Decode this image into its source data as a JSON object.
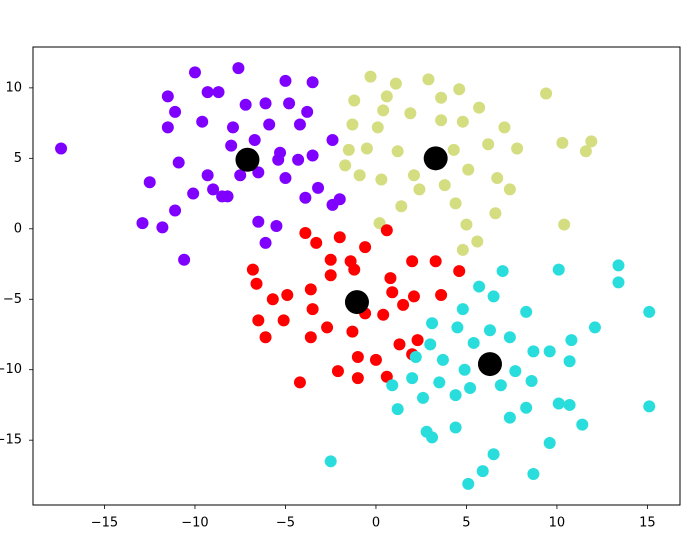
{
  "chart_data": {
    "type": "scatter",
    "xlim": [
      -18.95,
      16.8
    ],
    "ylim": [
      -19.6,
      12.9
    ],
    "xticks": [
      {
        "value": -15,
        "label": "−15"
      },
      {
        "value": -10,
        "label": "−10"
      },
      {
        "value": -5,
        "label": "−5"
      },
      0,
      5,
      10,
      15
    ],
    "yticks": [
      {
        "value": -15,
        "label": "−15"
      },
      {
        "value": -10,
        "label": "−10"
      },
      {
        "value": -5,
        "label": "−5"
      },
      0,
      5,
      10
    ],
    "series": [
      {
        "color": "#8000ff",
        "x": [
          -17.4,
          -10,
          -7.6,
          -11.5,
          -9.3,
          -8.7,
          -5,
          -3.5,
          -11.1,
          -11.5,
          -9.6,
          -7.2,
          -6.1,
          -4.8,
          -7.9,
          -5.9,
          -4.2,
          -3.8,
          -2.4,
          -10.9,
          -12.5,
          -10.1,
          -9,
          -8.2,
          -9.3,
          -7.5,
          -6.5,
          -5,
          -3.5,
          -4.3,
          -5.4,
          -8,
          -6.7,
          -11.1,
          -12.9,
          -11.8,
          -10.6,
          -6.5,
          -6.1,
          -5.5,
          -3.2,
          -2.4,
          -2,
          -3.9,
          -5.3,
          -8.5
        ],
        "y": [
          5.7,
          11.1,
          11.4,
          9.4,
          9.7,
          9.7,
          10.5,
          10.4,
          8.3,
          7.2,
          7.6,
          8.8,
          8.9,
          8.9,
          7.2,
          7.4,
          7.4,
          8.3,
          6.3,
          4.7,
          3.3,
          2.5,
          2.8,
          2.3,
          3.8,
          3.8,
          4,
          3.6,
          5.2,
          4.9,
          4.9,
          5.9,
          6.3,
          1.3,
          0.4,
          0.1,
          -2.2,
          0.5,
          -1,
          0.2,
          2.9,
          1.7,
          2.1,
          2.2,
          5.4,
          2.3
        ]
      },
      {
        "color": "#d4dd80",
        "x": [
          -0.3,
          1.1,
          2.9,
          4.6,
          9.4,
          -1.2,
          0.4,
          1.9,
          3.6,
          5.7,
          -1.3,
          0.1,
          4.8,
          7.1,
          -1.5,
          -0.5,
          1.2,
          4.3,
          6.2,
          7.8,
          10.3,
          11.9,
          11.6,
          -1.7,
          -0.9,
          0.3,
          2.1,
          3.8,
          5.1,
          6.7,
          7.4,
          1.4,
          2.4,
          4.4,
          5,
          6.6,
          0.2,
          10.4,
          4.8,
          5.6,
          3.6,
          0.6
        ],
        "y": [
          10.8,
          10.3,
          10.6,
          9.9,
          9.6,
          9.1,
          8.4,
          8.2,
          9.3,
          8.6,
          7.4,
          7.2,
          7.6,
          7.2,
          5.6,
          5.7,
          5.5,
          5.6,
          6,
          5.7,
          6.1,
          6.2,
          5.5,
          4.5,
          3.8,
          3.5,
          3.8,
          3.1,
          4.2,
          3.6,
          2.8,
          1.6,
          2.8,
          1.8,
          0.3,
          1.1,
          0.4,
          0.3,
          -1.5,
          -0.9,
          7.7,
          9.4
        ]
      },
      {
        "color": "#ff0000",
        "x": [
          0.6,
          -3.9,
          -3.3,
          -2,
          -0.6,
          -2.5,
          -1.4,
          -6.8,
          -6.6,
          -5.7,
          -4.9,
          -3.6,
          -2.5,
          -1.2,
          0.8,
          2,
          3.3,
          4.6,
          0.9,
          2.1,
          3.6,
          -6.5,
          -5.1,
          -3.5,
          -2.7,
          -0.6,
          0.4,
          1.5,
          -6.1,
          -3.6,
          -1.3,
          1.3,
          2.3,
          -4.2,
          -2.1,
          -1,
          0,
          -1,
          0.6,
          2
        ],
        "y": [
          -0.1,
          -0.3,
          -1,
          -0.6,
          -1.3,
          -2.2,
          -2.3,
          -2.9,
          -3.9,
          -5,
          -4.7,
          -4.3,
          -3.3,
          -2.9,
          -3.5,
          -2.3,
          -2.3,
          -3,
          -4.5,
          -4.8,
          -4.7,
          -6.5,
          -6.5,
          -5.7,
          -7,
          -6,
          -6.1,
          -5.4,
          -7.7,
          -7.7,
          -7.3,
          -8.2,
          -7.9,
          -10.9,
          -10.1,
          -9.1,
          -9.3,
          -10.6,
          -10.5,
          -8.9
        ]
      },
      {
        "color": "#2adddd",
        "x": [
          7,
          10.1,
          13.4,
          13.4,
          5.7,
          6.5,
          4.8,
          8.3,
          15.1,
          12.1,
          3.1,
          4.5,
          6.3,
          7.4,
          3,
          5.4,
          8.7,
          9.6,
          10.8,
          10.7,
          2.2,
          3.7,
          4.9,
          7.7,
          0.9,
          2,
          3.5,
          5.2,
          6.9,
          8.6,
          1.2,
          2.6,
          4.4,
          8.3,
          10.1,
          10.7,
          15.1,
          2.8,
          4.4,
          7.4,
          11.4,
          3.1,
          9.6,
          6.5,
          -2.5,
          5.9,
          8.7,
          5.1
        ],
        "y": [
          -3,
          -2.9,
          -2.6,
          -3.8,
          -4.1,
          -4.8,
          -5.7,
          -5.9,
          -5.9,
          -7,
          -6.7,
          -7,
          -7.2,
          -7.7,
          -8.2,
          -8.1,
          -8.7,
          -8.7,
          -7.9,
          -9.4,
          -9.1,
          -9.3,
          -10,
          -10.1,
          -11.1,
          -10.6,
          -10.9,
          -11.3,
          -11.1,
          -10.8,
          -12.8,
          -12,
          -11.8,
          -12.7,
          -12.4,
          -12.5,
          -12.6,
          -14.4,
          -14.1,
          -13.4,
          -13.9,
          -14.8,
          -15.2,
          -16,
          -16.5,
          -17.2,
          -17.4,
          -18.1
        ]
      },
      {
        "color": "#000000",
        "x": [
          -7.1,
          3.3,
          -1.05,
          6.3
        ],
        "y": [
          4.9,
          5,
          -5.2,
          -9.6
        ]
      }
    ]
  }
}
